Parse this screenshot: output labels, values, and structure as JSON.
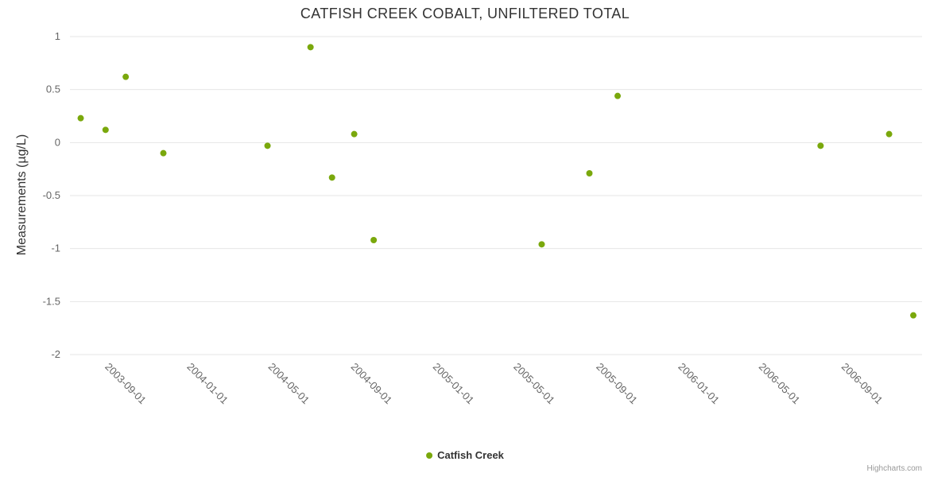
{
  "credits": "Highcharts.com",
  "chart_data": {
    "type": "scatter",
    "title": "CATFISH CREEK COBALT, UNFILTERED TOTAL",
    "xlabel": "",
    "ylabel": "Measurements (µg/L)",
    "x_type": "datetime",
    "x_range": [
      "2003-06-24",
      "2006-12-13"
    ],
    "x_ticks": [
      "2003-09-01",
      "2004-01-01",
      "2004-05-01",
      "2004-09-01",
      "2005-01-01",
      "2005-05-01",
      "2005-09-01",
      "2006-01-01",
      "2006-05-01",
      "2006-09-01"
    ],
    "ylim": [
      -2,
      1
    ],
    "y_ticks": [
      1,
      0.5,
      0,
      -0.5,
      -1,
      -1.5,
      -2
    ],
    "grid": "horizontal",
    "grid_color": "#e6e6e6",
    "legend_position": "bottom-center",
    "marker_radius": 4,
    "series": [
      {
        "name": "Catfish Creek",
        "color": "#7aa80c",
        "points": [
          {
            "x": "2003-07-10",
            "y": 0.23
          },
          {
            "x": "2003-08-16",
            "y": 0.12
          },
          {
            "x": "2003-09-15",
            "y": 0.62
          },
          {
            "x": "2003-11-10",
            "y": -0.1
          },
          {
            "x": "2004-04-13",
            "y": -0.03
          },
          {
            "x": "2004-06-16",
            "y": 0.9
          },
          {
            "x": "2004-07-18",
            "y": -0.33
          },
          {
            "x": "2004-08-20",
            "y": 0.08
          },
          {
            "x": "2004-09-18",
            "y": -0.92
          },
          {
            "x": "2005-05-26",
            "y": -0.96
          },
          {
            "x": "2005-08-05",
            "y": -0.29
          },
          {
            "x": "2005-09-16",
            "y": 0.44
          },
          {
            "x": "2006-07-15",
            "y": -0.03
          },
          {
            "x": "2006-10-25",
            "y": 0.08
          },
          {
            "x": "2006-11-30",
            "y": -1.63
          }
        ]
      }
    ]
  }
}
